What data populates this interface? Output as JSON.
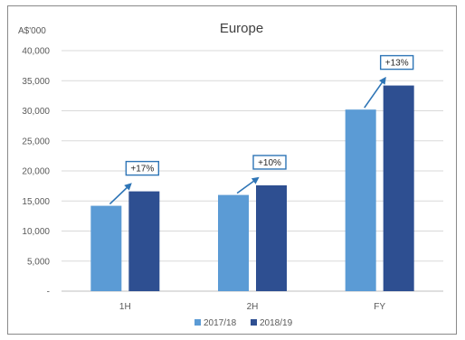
{
  "chart_data": {
    "type": "bar",
    "title": "Europe",
    "unit_label": "A$'000",
    "categories": [
      "1H",
      "2H",
      "FY"
    ],
    "series": [
      {
        "name": "2017/18",
        "values": [
          14200,
          16000,
          30200
        ],
        "color": "#5b9bd5"
      },
      {
        "name": "2018/19",
        "values": [
          16600,
          17600,
          34200
        ],
        "color": "#2e4f91"
      }
    ],
    "annotations": [
      "+17%",
      "+10%",
      "+13%"
    ],
    "ylim": [
      0,
      40000
    ],
    "yticks": [
      0,
      5000,
      10000,
      15000,
      20000,
      25000,
      30000,
      35000,
      40000
    ],
    "ytick_labels": [
      "-",
      "5,000",
      "10,000",
      "15,000",
      "20,000",
      "25,000",
      "30,000",
      "35,000",
      "40,000"
    ],
    "grid": true,
    "legend_position": "bottom",
    "annotation_color": "#2e75b6"
  }
}
